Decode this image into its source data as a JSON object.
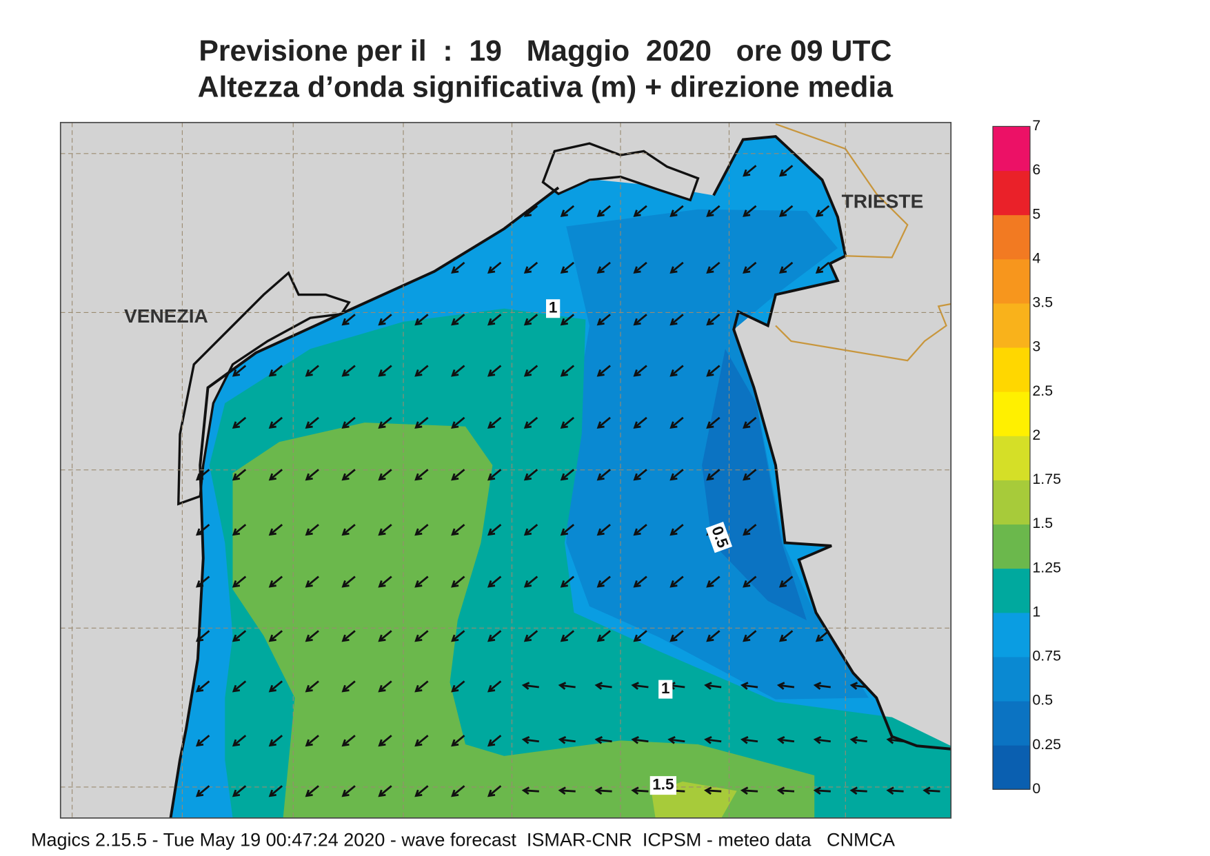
{
  "title": [
    "Previsione per il  :  19   Maggio  2020   ore 09 UTC",
    "Altezza d’onda significativa (m) + direzione media"
  ],
  "map": {
    "places": [
      "VENEZIA",
      "TRIESTE"
    ],
    "contour_labels": [
      "1",
      "0.5",
      "1",
      "1.5"
    ]
  },
  "legend": {
    "levels": [
      0,
      0.25,
      0.5,
      0.75,
      1,
      1.25,
      1.5,
      1.75,
      2,
      2.5,
      3,
      3.5,
      4,
      5,
      6,
      7
    ],
    "colors": [
      "#0a5fb0",
      "#0b73c2",
      "#0a89d2",
      "#0a9de2",
      "#00a99e",
      "#6bb84c",
      "#a7cb3a",
      "#d5df27",
      "#fff000",
      "#ffd700",
      "#f9b21b",
      "#f7961d",
      "#f27a22",
      "#ea2129",
      "#ec1166"
    ]
  },
  "footer": "Magics 2.15.5 - Tue May 19 00:47:24 2020 - wave forecast  ISMAR-CNR  ICPSM - meteo data   CNMCA"
}
